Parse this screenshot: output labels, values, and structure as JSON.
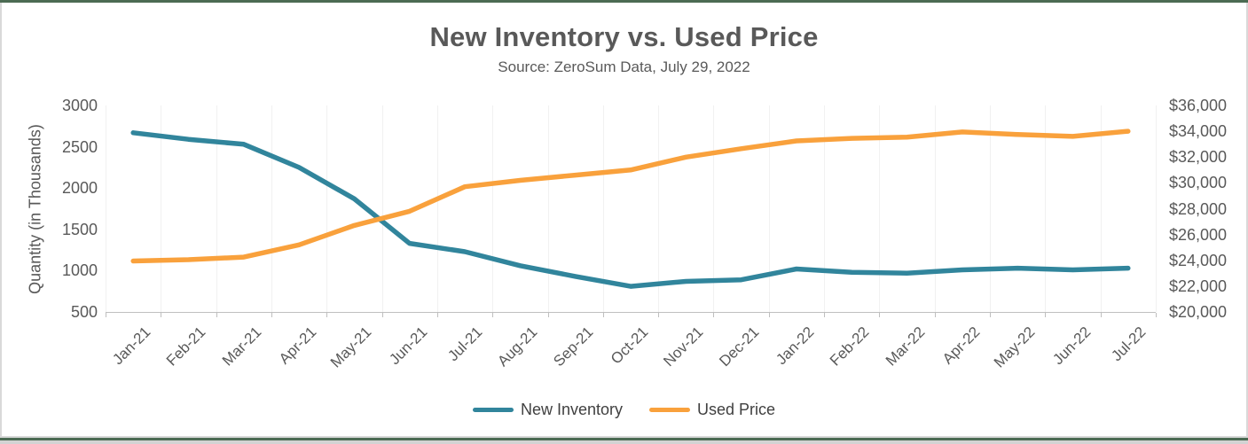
{
  "title": "New Inventory vs. Used Price",
  "subtitle": "Source: ZeroSum Data, July 29, 2022",
  "left_axis": {
    "title": "Quantity (in Thousands)",
    "tick_labels": [
      "3000",
      "2500",
      "2000",
      "1500",
      "1000",
      "500"
    ]
  },
  "right_axis": {
    "tick_labels": [
      "$36,000",
      "$34,000",
      "$32,000",
      "$30,000",
      "$28,000",
      "$26,000",
      "$24,000",
      "$22,000",
      "$20,000"
    ]
  },
  "legend": [
    {
      "label": "New Inventory",
      "color": "#31859c"
    },
    {
      "label": "Used Price",
      "color": "#f9a13c"
    }
  ],
  "colors": {
    "new_inventory_line": "#31859c",
    "used_price_line": "#f9a13c",
    "text_gray": "#595959",
    "axis_gray": "#bfbfbf",
    "frame_green": "#4c6b53"
  },
  "chart_data": {
    "type": "line",
    "title": "New Inventory vs. Used Price",
    "subtitle": "Source: ZeroSum Data, July 29, 2022",
    "categories": [
      "Jan-21",
      "Feb-21",
      "Mar-21",
      "Apr-21",
      "May-21",
      "Jun-21",
      "Jul-21",
      "Aug-21",
      "Sep-21",
      "Oct-21",
      "Nov-21",
      "Dec-21",
      "Jan-22",
      "Feb-22",
      "Mar-22",
      "Apr-22",
      "May-22",
      "Jun-22",
      "Jul-22"
    ],
    "series": [
      {
        "name": "New Inventory",
        "axis": "left",
        "color": "#31859c",
        "values": [
          2670,
          2590,
          2530,
          2250,
          1870,
          1330,
          1230,
          1060,
          930,
          810,
          870,
          890,
          1020,
          980,
          970,
          1010,
          1030,
          1010,
          1030
        ]
      },
      {
        "name": "Used Price",
        "axis": "right",
        "color": "#f9a13c",
        "values": [
          23950,
          24050,
          24250,
          25200,
          26700,
          27800,
          29700,
          30200,
          30600,
          31000,
          32000,
          32650,
          33250,
          33450,
          33550,
          33950,
          33750,
          33600,
          34000
        ]
      }
    ],
    "left_ylabel": "Quantity (in Thousands)",
    "left_ylim": [
      500,
      3000
    ],
    "left_ytick_step": 500,
    "right_ylim": [
      20000,
      36000
    ],
    "right_ytick_step": 2000,
    "grid": "faint-vertical",
    "legend_position": "bottom"
  }
}
